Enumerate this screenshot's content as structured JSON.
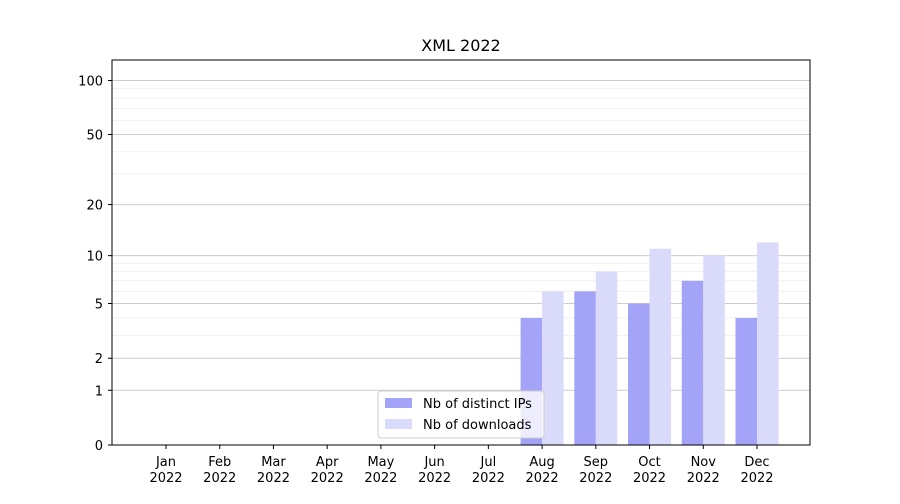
{
  "chart_data": {
    "type": "bar",
    "title": "XML 2022",
    "xlabel": "",
    "ylabel": "",
    "categories": [
      "Jan\n2022",
      "Feb\n2022",
      "Mar\n2022",
      "Apr\n2022",
      "May\n2022",
      "Jun\n2022",
      "Jul\n2022",
      "Aug\n2022",
      "Sep\n2022",
      "Oct\n2022",
      "Nov\n2022",
      "Dec\n2022"
    ],
    "series": [
      {
        "name": "Nb of distinct IPs",
        "color": "#a3a3f7",
        "values": [
          0,
          0,
          0,
          0,
          0,
          0,
          0,
          4,
          6,
          5,
          7,
          4
        ]
      },
      {
        "name": "Nb of downloads",
        "color": "#dadafa",
        "values": [
          0,
          0,
          0,
          0,
          0,
          0,
          0,
          6,
          8,
          11,
          10,
          12
        ]
      }
    ],
    "y_scale": "symlog",
    "yticks": [
      0,
      1,
      2,
      5,
      10,
      20,
      50,
      100
    ],
    "ytick_labels": [
      "0",
      "1",
      "2",
      "5",
      "10",
      "20",
      "50",
      "100"
    ],
    "ylim": [
      0,
      130
    ],
    "grid": "y, major and minor",
    "legend_position": "lower-center"
  }
}
